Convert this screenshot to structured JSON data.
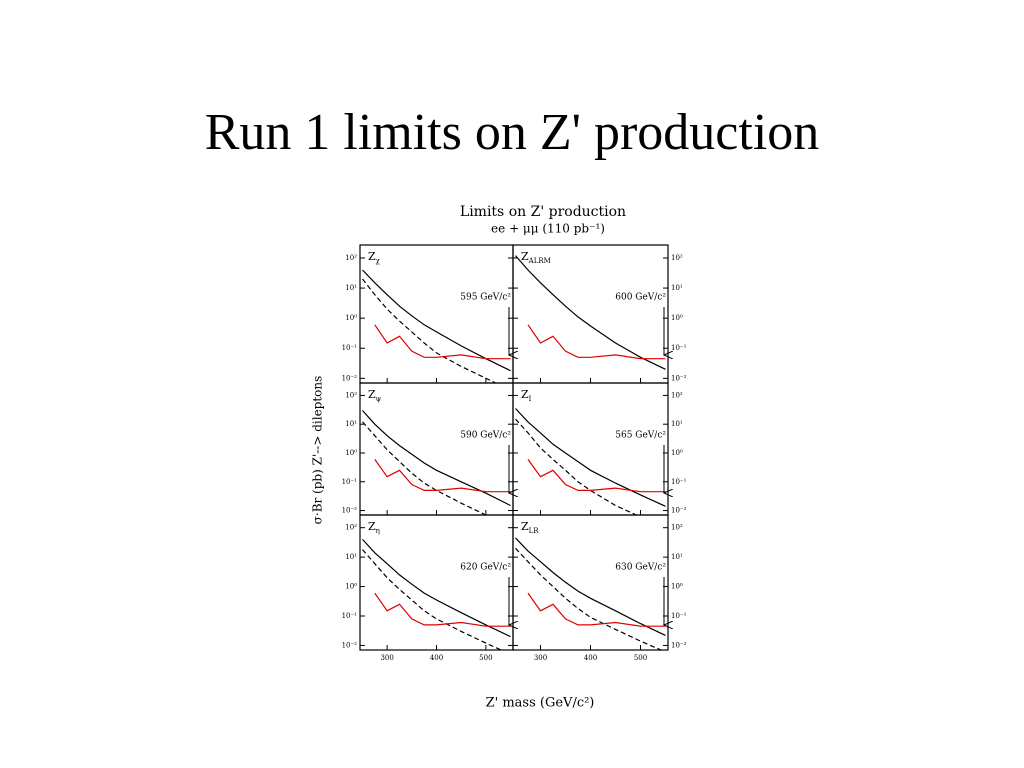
{
  "slide_title": "Run 1 limits on Z' production",
  "figure": {
    "title": "Limits on Z' production",
    "subtitle": "ee + μμ  (110 pb⁻¹)",
    "x_label": "Z' mass (GeV/c²)",
    "y_label": "σ·Br (pb)   Z'--> dileptons"
  },
  "chart_data": [
    {
      "type": "line",
      "title": "Z",
      "title_sub": "χ",
      "annotation": "595 GeV/c²",
      "limit": 595,
      "log_y": true,
      "x": [
        250,
        275,
        300,
        325,
        350,
        375,
        400,
        450,
        500,
        550
      ],
      "xlim": [
        245,
        555
      ],
      "xticks": [
        300,
        400,
        500
      ],
      "ylim": [
        0.007,
        270
      ],
      "yticks": [
        {
          "value": 0.01,
          "label": "10⁻²"
        },
        {
          "value": 0.1,
          "label": "10⁻¹"
        },
        {
          "value": 1,
          "label": "10⁰"
        },
        {
          "value": 10,
          "label": "10¹"
        },
        {
          "value": 100,
          "label": "10²"
        }
      ],
      "series": [
        {
          "color": "#000000",
          "dash": false,
          "values": [
            40,
            15,
            6,
            2.5,
            1.2,
            0.6,
            0.35,
            0.12,
            0.045,
            0.018
          ]
        },
        {
          "color": "#000000",
          "dash": true,
          "values": [
            20,
            6,
            2,
            0.8,
            0.35,
            0.15,
            0.07,
            0.025,
            0.01,
            0.004
          ]
        },
        {
          "color": "#e00000",
          "dash": false,
          "values": [
            null,
            0.6,
            0.15,
            0.25,
            0.08,
            0.05,
            0.05,
            0.06,
            0.045,
            0.045
          ]
        }
      ]
    },
    {
      "type": "line",
      "title": "Z",
      "title_sub": "ALRM",
      "annotation": "600 GeV/c²",
      "limit": 600,
      "log_y": true,
      "x": [
        250,
        275,
        300,
        325,
        350,
        375,
        400,
        450,
        500,
        550
      ],
      "xlim": [
        245,
        555
      ],
      "xticks": [
        300,
        400,
        500
      ],
      "ylim": [
        0.007,
        270
      ],
      "yticks": [
        {
          "value": 0.01,
          "label": "10⁻²"
        },
        {
          "value": 0.1,
          "label": "10⁻¹"
        },
        {
          "value": 1,
          "label": "10⁰"
        },
        {
          "value": 10,
          "label": "10¹"
        },
        {
          "value": 100,
          "label": "10²"
        }
      ],
      "series": [
        {
          "color": "#000000",
          "dash": false,
          "values": [
            120,
            40,
            15,
            6,
            2.5,
            1.1,
            0.55,
            0.15,
            0.05,
            0.02
          ]
        },
        {
          "color": "#e00000",
          "dash": false,
          "values": [
            null,
            0.6,
            0.15,
            0.25,
            0.08,
            0.05,
            0.05,
            0.06,
            0.045,
            0.045
          ]
        }
      ]
    },
    {
      "type": "line",
      "title": "Z",
      "title_sub": "ψ",
      "annotation": "590 GeV/c²",
      "limit": 590,
      "log_y": true,
      "x": [
        250,
        275,
        300,
        325,
        350,
        375,
        400,
        450,
        500,
        550
      ],
      "xlim": [
        245,
        555
      ],
      "xticks": [
        300,
        400,
        500
      ],
      "ylim": [
        0.007,
        270
      ],
      "yticks": [
        {
          "value": 0.01,
          "label": "10⁻²"
        },
        {
          "value": 0.1,
          "label": "10⁻¹"
        },
        {
          "value": 1,
          "label": "10⁰"
        },
        {
          "value": 10,
          "label": "10¹"
        },
        {
          "value": 100,
          "label": "10²"
        }
      ],
      "series": [
        {
          "color": "#000000",
          "dash": false,
          "values": [
            30,
            10,
            4,
            1.8,
            0.9,
            0.45,
            0.25,
            0.1,
            0.04,
            0.015
          ]
        },
        {
          "color": "#000000",
          "dash": true,
          "values": [
            12,
            4,
            1.3,
            0.5,
            0.2,
            0.09,
            0.05,
            0.018,
            0.007,
            0.003
          ]
        },
        {
          "color": "#e00000",
          "dash": false,
          "values": [
            null,
            0.6,
            0.15,
            0.25,
            0.08,
            0.05,
            0.05,
            0.06,
            0.045,
            0.045
          ]
        }
      ]
    },
    {
      "type": "line",
      "title": "Z",
      "title_sub": "I",
      "annotation": "565 GeV/c²",
      "limit": 565,
      "log_y": true,
      "x": [
        250,
        275,
        300,
        325,
        350,
        375,
        400,
        450,
        500,
        550
      ],
      "xlim": [
        245,
        555
      ],
      "xticks": [
        300,
        400,
        500
      ],
      "ylim": [
        0.007,
        270
      ],
      "yticks": [
        {
          "value": 0.01,
          "label": "10⁻²"
        },
        {
          "value": 0.1,
          "label": "10⁻¹"
        },
        {
          "value": 1,
          "label": "10⁰"
        },
        {
          "value": 10,
          "label": "10¹"
        },
        {
          "value": 100,
          "label": "10²"
        }
      ],
      "series": [
        {
          "color": "#000000",
          "dash": false,
          "values": [
            35,
            12,
            5,
            2,
            1,
            0.5,
            0.25,
            0.09,
            0.035,
            0.014
          ]
        },
        {
          "color": "#000000",
          "dash": true,
          "values": [
            15,
            5,
            1.5,
            0.6,
            0.25,
            0.1,
            0.05,
            0.015,
            0.006,
            0.0025
          ]
        },
        {
          "color": "#e00000",
          "dash": false,
          "values": [
            null,
            0.6,
            0.15,
            0.25,
            0.08,
            0.05,
            0.05,
            0.06,
            0.045,
            0.045
          ]
        }
      ]
    },
    {
      "type": "line",
      "title": "Z",
      "title_sub": "η",
      "annotation": "620 GeV/c²",
      "limit": 620,
      "log_y": true,
      "x": [
        250,
        275,
        300,
        325,
        350,
        375,
        400,
        450,
        500,
        550
      ],
      "xlim": [
        245,
        555
      ],
      "xticks": [
        300,
        400,
        500
      ],
      "ylim": [
        0.007,
        270
      ],
      "yticks": [
        {
          "value": 0.01,
          "label": "10⁻²"
        },
        {
          "value": 0.1,
          "label": "10⁻¹"
        },
        {
          "value": 1,
          "label": "10⁰"
        },
        {
          "value": 10,
          "label": "10¹"
        },
        {
          "value": 100,
          "label": "10²"
        }
      ],
      "series": [
        {
          "color": "#000000",
          "dash": false,
          "values": [
            40,
            14,
            6,
            2.5,
            1.2,
            0.6,
            0.35,
            0.13,
            0.05,
            0.02
          ]
        },
        {
          "color": "#000000",
          "dash": true,
          "values": [
            18,
            6,
            2,
            0.8,
            0.35,
            0.15,
            0.08,
            0.03,
            0.012,
            0.005
          ]
        },
        {
          "color": "#e00000",
          "dash": false,
          "values": [
            null,
            0.6,
            0.15,
            0.25,
            0.08,
            0.05,
            0.05,
            0.06,
            0.045,
            0.045
          ]
        }
      ]
    },
    {
      "type": "line",
      "title": "Z",
      "title_sub": "LR",
      "annotation": "630 GeV/c²",
      "limit": 630,
      "log_y": true,
      "x": [
        250,
        275,
        300,
        325,
        350,
        375,
        400,
        450,
        500,
        550
      ],
      "xlim": [
        245,
        555
      ],
      "xticks": [
        300,
        400,
        500
      ],
      "ylim": [
        0.007,
        270
      ],
      "yticks": [
        {
          "value": 0.01,
          "label": "10⁻²"
        },
        {
          "value": 0.1,
          "label": "10⁻¹"
        },
        {
          "value": 1,
          "label": "10⁰"
        },
        {
          "value": 10,
          "label": "10¹"
        },
        {
          "value": 100,
          "label": "10²"
        }
      ],
      "series": [
        {
          "color": "#000000",
          "dash": false,
          "values": [
            45,
            16,
            7,
            3,
            1.4,
            0.7,
            0.4,
            0.15,
            0.055,
            0.022
          ]
        },
        {
          "color": "#000000",
          "dash": true,
          "values": [
            20,
            7,
            2.5,
            1,
            0.4,
            0.18,
            0.09,
            0.035,
            0.014,
            0.006
          ]
        },
        {
          "color": "#e00000",
          "dash": false,
          "values": [
            null,
            0.6,
            0.15,
            0.25,
            0.08,
            0.05,
            0.05,
            0.06,
            0.045,
            0.045
          ]
        }
      ]
    }
  ]
}
